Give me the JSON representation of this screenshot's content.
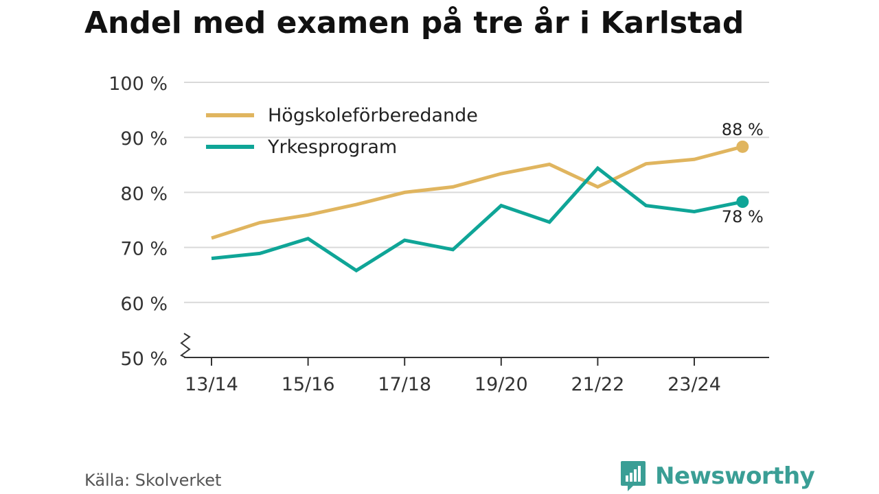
{
  "chart_data": {
    "type": "line",
    "title": "Andel med examen på tre år i Karlstad",
    "categories": [
      "13/14",
      "14/15",
      "15/16",
      "16/17",
      "17/18",
      "18/19",
      "19/20",
      "20/21",
      "21/22",
      "22/23",
      "23/24",
      "24/25"
    ],
    "x_tick_labels": [
      "13/14",
      "15/16",
      "17/18",
      "19/20",
      "21/22",
      "23/24"
    ],
    "y_ticks": [
      50,
      60,
      70,
      80,
      90,
      100
    ],
    "y_tick_labels": [
      "50 %",
      "60 %",
      "70 %",
      "80 %",
      "90 %",
      "100 %"
    ],
    "ylim": [
      50,
      100
    ],
    "axis_break": true,
    "grid": true,
    "legend_position": "top-left",
    "series": [
      {
        "name": "Högskoleförberedande",
        "color": "#e0b55f",
        "values": [
          71.7,
          74.5,
          75.9,
          77.8,
          80.0,
          81.0,
          83.4,
          85.1,
          81.0,
          85.2,
          86.0,
          88.3
        ],
        "end_label": "88 %"
      },
      {
        "name": "Yrkesprogram",
        "color": "#0fa597",
        "values": [
          68.0,
          68.9,
          71.6,
          65.8,
          71.3,
          69.6,
          77.6,
          74.6,
          84.4,
          77.6,
          76.5,
          78.3
        ],
        "end_label": "78 %"
      }
    ]
  },
  "source": "Källa: Skolverket",
  "brand": {
    "name": "Newsworthy",
    "logo_icon": "newsworthy-logo-icon",
    "color": "#3a9e95"
  }
}
